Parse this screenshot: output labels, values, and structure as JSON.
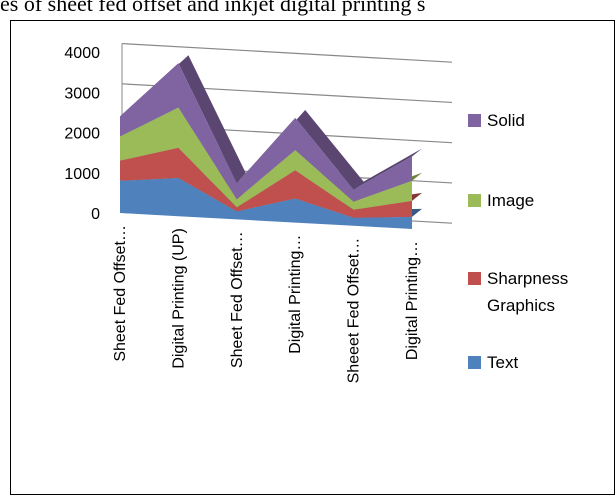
{
  "caption": "es of sheet fed offset and inkjet digital printing s",
  "chart_data": {
    "type": "area3d",
    "categories": [
      "Sheet Fed Offset…",
      "Digital Printing (UP)",
      "Sheet Fed Offset…",
      "Digital Printing…",
      "Sheeet Fed Offset…",
      "Digital Printing…"
    ],
    "series": [
      {
        "name": "Text",
        "color": "#4f81bd",
        "values": [
          800,
          950,
          200,
          600,
          200,
          300
        ]
      },
      {
        "name": "Sharpness Graphics",
        "color": "#c0504d",
        "values": [
          500,
          750,
          100,
          700,
          200,
          400
        ]
      },
      {
        "name": "Image",
        "color": "#9bbb59",
        "values": [
          600,
          1000,
          200,
          500,
          200,
          500
        ]
      },
      {
        "name": "Solid",
        "color": "#8064a2",
        "values": [
          500,
          1100,
          400,
          800,
          300,
          600
        ]
      }
    ],
    "ylim": [
      0,
      4000
    ],
    "yticks": [
      0,
      1000,
      2000,
      3000,
      4000
    ],
    "grid": true,
    "legend": "right",
    "stacked": true
  }
}
